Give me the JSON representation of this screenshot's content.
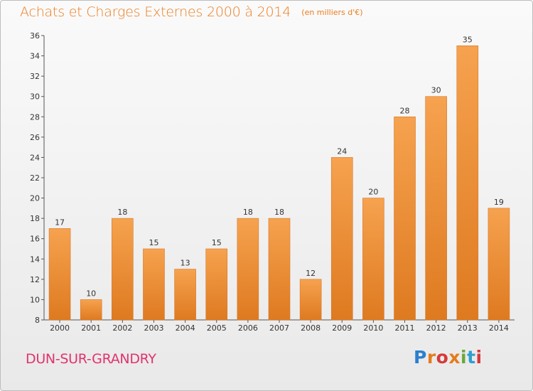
{
  "header": {
    "title": "Achats et Charges Externes 2000 à 2014",
    "subtitle": "(en milliers d'€)"
  },
  "footer": {
    "commune": "DUN-SUR-GRANDRY",
    "brand": [
      "P",
      "r",
      "o",
      "x",
      "i",
      "t",
      "i"
    ]
  },
  "colors": {
    "bar_light": "#f6a24f",
    "bar_dark": "#de7a20",
    "title": "#ec7d1f",
    "commune": "#e0336e"
  },
  "chart_data": {
    "type": "bar",
    "title": "Achats et Charges Externes 2000 à 2014",
    "subtitle": "(en milliers d'€)",
    "xlabel": "",
    "ylabel": "",
    "categories": [
      "2000",
      "2001",
      "2002",
      "2003",
      "2004",
      "2005",
      "2006",
      "2007",
      "2008",
      "2009",
      "2010",
      "2011",
      "2012",
      "2013",
      "2014"
    ],
    "values": [
      17,
      10,
      18,
      15,
      13,
      15,
      18,
      18,
      12,
      24,
      20,
      28,
      30,
      35,
      19
    ],
    "ylim": [
      8,
      36
    ],
    "yticks": [
      8,
      10,
      12,
      14,
      16,
      18,
      20,
      22,
      24,
      26,
      28,
      30,
      32,
      34,
      36
    ],
    "grid": false,
    "data_labels": true
  }
}
